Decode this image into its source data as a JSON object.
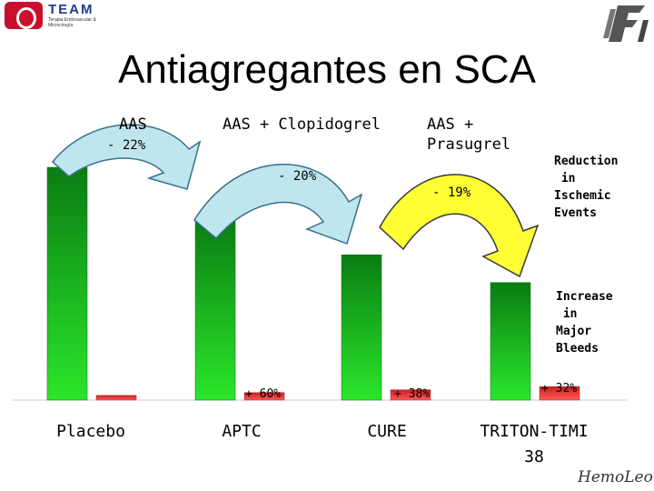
{
  "slide": {
    "title": "Antiagregantes en SCA",
    "logo_left": {
      "name": "TEAM",
      "subtitle": "Terapia Endovascular & Microcirugía"
    },
    "logo_right": {
      "icon": "hl-monogram-icon"
    },
    "signature": "HemoLeon"
  },
  "colors": {
    "efficacy_bar": "#15a315",
    "bleeding_bar": "#ee3b3b",
    "arrow_cyan": "#bfe6ee",
    "arrow_yellow": "#ffff33"
  },
  "annotations": {
    "top_labels": [
      "AAS",
      "AAS + Clopidogrel",
      "AAS +\nPrasugrel"
    ],
    "efficacy_changes": [
      "- 22%",
      "- 20%",
      "- 19%"
    ],
    "bleeding_changes": [
      "+ 60%",
      "+ 38%",
      "+ 32%"
    ],
    "legend_efficacy": "Reduction\n in\nIschemic\nEvents",
    "legend_bleeding": "Increase\n in\nMajor\nBleeds"
  },
  "chart_data": {
    "type": "bar",
    "categories": [
      "Placebo",
      "APTC",
      "CURE",
      "TRITON-TIMI\n38"
    ],
    "series": [
      {
        "values": [
          100,
          78,
          62.4,
          50.5
        ]
      },
      {
        "values": [
          2.0,
          3.2,
          4.4,
          5.8
        ]
      }
    ],
    "ylim": [
      0,
      108
    ],
    "grid": false,
    "axis_ticks_visible": false
  }
}
